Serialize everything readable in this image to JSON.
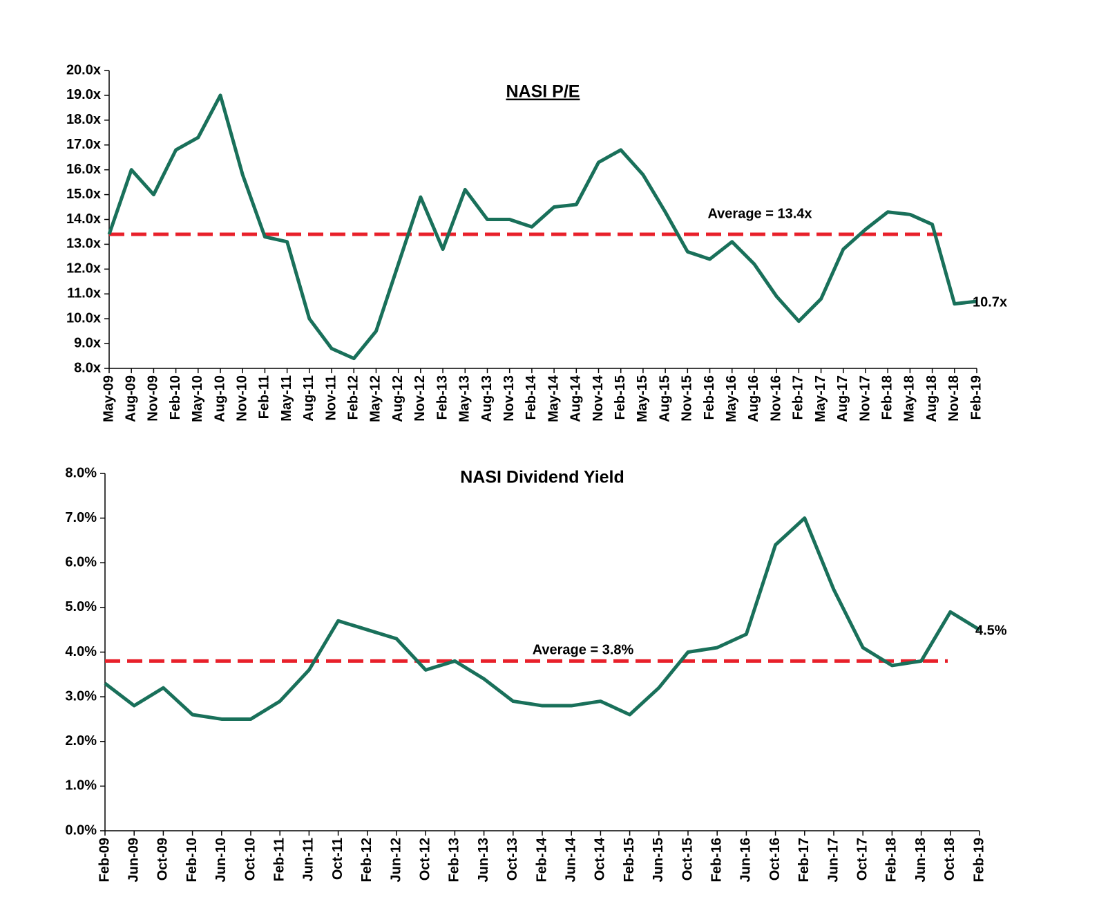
{
  "chart_data": [
    {
      "type": "line",
      "title": "NASI P/E",
      "title_underline": true,
      "categories": [
        "May-09",
        "Aug-09",
        "Nov-09",
        "Feb-10",
        "May-10",
        "Aug-10",
        "Nov-10",
        "Feb-11",
        "May-11",
        "Aug-11",
        "Nov-11",
        "Feb-12",
        "May-12",
        "Aug-12",
        "Nov-12",
        "Feb-13",
        "May-13",
        "Aug-13",
        "Nov-13",
        "Feb-14",
        "May-14",
        "Aug-14",
        "Nov-14",
        "Feb-15",
        "May-15",
        "Aug-15",
        "Nov-15",
        "Feb-16",
        "May-16",
        "Aug-16",
        "Nov-16",
        "Feb-17",
        "May-17",
        "Aug-17",
        "Nov-17",
        "Feb-18",
        "May-18",
        "Aug-18",
        "Nov-18",
        "Feb-19"
      ],
      "series": [
        {
          "color": "#19705a",
          "values": [
            13.4,
            16.0,
            15.0,
            16.8,
            17.3,
            19.0,
            15.8,
            13.3,
            13.1,
            10.0,
            8.8,
            8.4,
            9.5,
            12.2,
            14.9,
            12.8,
            15.2,
            14.0,
            14.0,
            13.7,
            14.5,
            14.6,
            16.3,
            16.8,
            15.8,
            14.3,
            12.7,
            12.4,
            13.1,
            12.2,
            10.9,
            9.9,
            10.8,
            12.8,
            13.6,
            14.3,
            14.2,
            13.8,
            10.6,
            10.7
          ],
          "value_labels": [
            null,
            null,
            null,
            null,
            null,
            null,
            null,
            null,
            null,
            null,
            null,
            null,
            null,
            null,
            null,
            null,
            null,
            null,
            null,
            null,
            null,
            null,
            null,
            null,
            null,
            null,
            null,
            null,
            null,
            null,
            null,
            null,
            null,
            null,
            null,
            null,
            null,
            null,
            null,
            "10.7x"
          ]
        }
      ],
      "average": 13.4,
      "average_label": "Average = 13.4x",
      "average_color": "#e8202a",
      "ylim": [
        8,
        20
      ],
      "yticks": [
        {
          "value": 8,
          "label": "8.0x"
        },
        {
          "value": 9,
          "label": "9.0x"
        },
        {
          "value": 10,
          "label": "10.0x"
        },
        {
          "value": 11,
          "label": "11.0x"
        },
        {
          "value": 12,
          "label": "12.0x"
        },
        {
          "value": 13,
          "label": "13.0x"
        },
        {
          "value": 14,
          "label": "14.0x"
        },
        {
          "value": 15,
          "label": "15.0x"
        },
        {
          "value": 16,
          "label": "16.0x"
        },
        {
          "value": 17,
          "label": "17.0x"
        },
        {
          "value": 18,
          "label": "18.0x"
        },
        {
          "value": 19,
          "label": "19.0x"
        },
        {
          "value": 20,
          "label": "20.0x"
        }
      ],
      "grid": false
    },
    {
      "type": "line",
      "title": "NASI Dividend Yield",
      "title_underline": false,
      "categories": [
        "Feb-09",
        "Jun-09",
        "Oct-09",
        "Feb-10",
        "Jun-10",
        "Oct-10",
        "Feb-11",
        "Jun-11",
        "Oct-11",
        "Feb-12",
        "Jun-12",
        "Oct-12",
        "Feb-13",
        "Jun-13",
        "Oct-13",
        "Feb-14",
        "Jun-14",
        "Oct-14",
        "Feb-15",
        "Jun-15",
        "Oct-15",
        "Feb-16",
        "Jun-16",
        "Oct-16",
        "Feb-17",
        "Jun-17",
        "Oct-17",
        "Feb-18",
        "Jun-18",
        "Oct-18",
        "Feb-19"
      ],
      "series": [
        {
          "color": "#19705a",
          "values": [
            3.3,
            2.8,
            3.2,
            2.6,
            2.5,
            2.5,
            2.9,
            3.6,
            4.7,
            4.5,
            4.3,
            3.6,
            3.8,
            3.4,
            2.9,
            2.8,
            2.8,
            2.9,
            2.6,
            3.2,
            4.0,
            4.1,
            4.4,
            6.4,
            7.0,
            5.4,
            4.1,
            3.7,
            3.8,
            4.9,
            4.5
          ],
          "value_labels": [
            null,
            null,
            null,
            null,
            null,
            null,
            null,
            null,
            null,
            null,
            null,
            null,
            null,
            null,
            null,
            null,
            null,
            null,
            null,
            null,
            null,
            null,
            null,
            null,
            null,
            null,
            null,
            null,
            null,
            null,
            "4.5%"
          ]
        }
      ],
      "average": 3.8,
      "average_label": "Average = 3.8%",
      "average_color": "#e8202a",
      "ylim": [
        0,
        8
      ],
      "yticks": [
        {
          "value": 0,
          "label": "0.0%"
        },
        {
          "value": 1,
          "label": "1.0%"
        },
        {
          "value": 2,
          "label": "2.0%"
        },
        {
          "value": 3,
          "label": "3.0%"
        },
        {
          "value": 4,
          "label": "4.0%"
        },
        {
          "value": 5,
          "label": "5.0%"
        },
        {
          "value": 6,
          "label": "6.0%"
        },
        {
          "value": 7,
          "label": "7.0%"
        },
        {
          "value": 8,
          "label": "8.0%"
        }
      ],
      "grid": false
    }
  ]
}
